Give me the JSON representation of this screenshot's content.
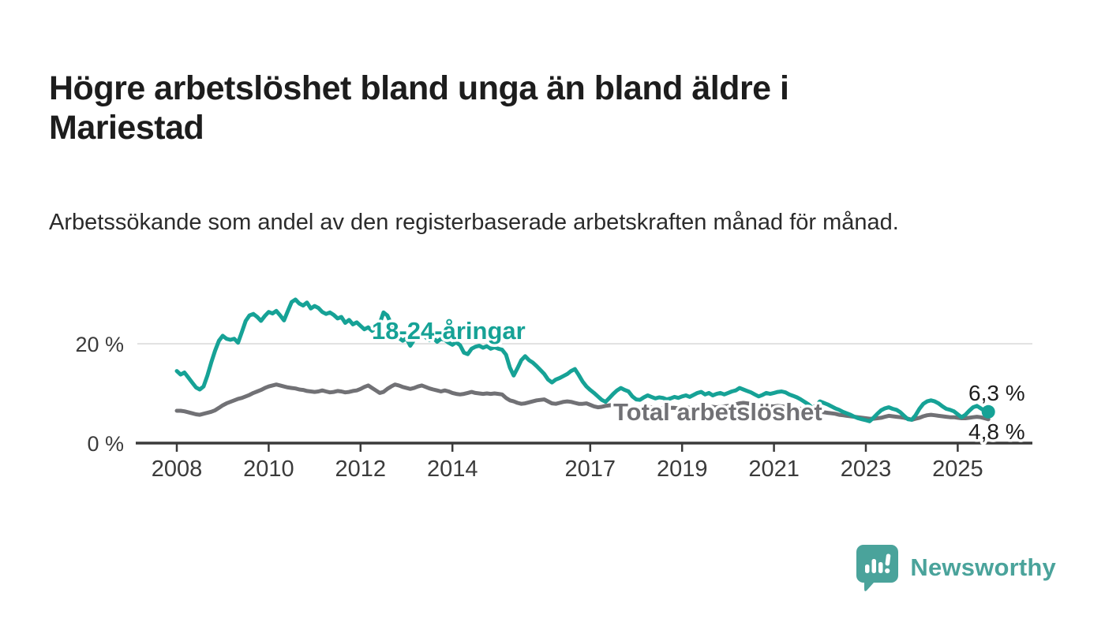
{
  "header": {
    "title": "Högre arbetslöshet bland unga än bland äldre i Mariestad",
    "subtitle": "Arbetssökande som andel av den registerbaserade arbetskraften månad för månad."
  },
  "chart_data": {
    "type": "line",
    "unit": "percent",
    "frequency": "monthly",
    "start": "2008-01",
    "end": "2025-09",
    "grid": "horizontal gridline at 20% only",
    "legend_position": "inline labels on lines",
    "xlim": [
      2007.6,
      2026.3
    ],
    "ylim": [
      0,
      31.5
    ],
    "x_ticks": [
      "2008",
      "2010",
      "2012",
      "2014",
      "2017",
      "2019",
      "2021",
      "2023",
      "2025"
    ],
    "y_ticks": [
      {
        "value": 20,
        "label": "20 %"
      },
      {
        "value": 0,
        "label": "0 %"
      }
    ],
    "series": [
      {
        "name": "18-24-åringar",
        "color": "#16a296",
        "end_value": 6.3,
        "end_label": "6,3 %",
        "values": [
          14.5,
          13.8,
          14.2,
          13.2,
          12.2,
          11.2,
          10.8,
          11.4,
          13.6,
          16.2,
          18.6,
          20.6,
          21.6,
          21.0,
          20.8,
          21.0,
          20.2,
          22.4,
          24.6,
          25.7,
          26.0,
          25.4,
          24.6,
          25.6,
          26.4,
          26.1,
          26.6,
          25.7,
          24.7,
          26.6,
          28.4,
          28.9,
          28.1,
          27.7,
          28.3,
          27.1,
          27.6,
          27.2,
          26.4,
          26.0,
          26.3,
          25.8,
          25.1,
          25.4,
          24.2,
          24.8,
          23.9,
          24.3,
          23.6,
          22.9,
          23.3,
          22.6,
          23.1,
          24.1,
          26.3,
          25.7,
          24.0,
          22.4,
          21.2,
          20.6,
          21.1,
          19.6,
          20.8,
          21.5,
          22.0,
          21.3,
          20.7,
          21.2,
          20.4,
          21.0,
          20.8,
          20.2,
          19.8,
          20.3,
          19.7,
          18.2,
          17.9,
          19.0,
          19.4,
          19.6,
          19.2,
          19.5,
          19.0,
          19.3,
          19.0,
          18.8,
          17.8,
          15.2,
          13.6,
          15.1,
          16.7,
          17.5,
          16.7,
          16.2,
          15.5,
          14.7,
          13.9,
          12.8,
          12.2,
          12.8,
          13.1,
          13.5,
          13.9,
          14.5,
          14.9,
          13.7,
          12.4,
          11.4,
          10.7,
          10.1,
          9.4,
          8.7,
          8.3,
          9.1,
          9.9,
          10.6,
          11.1,
          10.7,
          10.4,
          9.4,
          8.8,
          8.7,
          9.2,
          9.6,
          9.3,
          9.0,
          9.2,
          9.1,
          8.8,
          9.0,
          9.3,
          9.1,
          9.4,
          9.6,
          9.3,
          9.7,
          10.1,
          10.3,
          9.8,
          10.1,
          9.6,
          9.9,
          10.1,
          9.8,
          10.1,
          10.4,
          10.6,
          11.1,
          10.8,
          10.5,
          10.2,
          9.8,
          9.4,
          9.7,
          10.1,
          9.9,
          10.1,
          10.3,
          10.4,
          10.2,
          9.8,
          9.5,
          9.2,
          8.8,
          8.3,
          7.8,
          7.1,
          7.6,
          8.4,
          8.1,
          7.8,
          7.4,
          7.0,
          6.7,
          6.3,
          6.0,
          5.7,
          5.3,
          5.0,
          4.8,
          4.6,
          4.4,
          5.1,
          5.9,
          6.6,
          7.0,
          7.2,
          6.9,
          6.7,
          6.2,
          5.5,
          4.8,
          4.7,
          5.6,
          6.9,
          7.9,
          8.4,
          8.6,
          8.4,
          8.0,
          7.4,
          6.9,
          6.7,
          6.4,
          5.8,
          5.2,
          5.7,
          6.5,
          7.2,
          7.5,
          7.0,
          6.5,
          6.3
        ]
      },
      {
        "name": "Total arbetslöshet",
        "color": "#717175",
        "end_value": 4.8,
        "end_label": "4,8 %",
        "values": [
          6.5,
          6.5,
          6.4,
          6.2,
          6.0,
          5.8,
          5.7,
          5.9,
          6.1,
          6.3,
          6.6,
          7.1,
          7.6,
          8.0,
          8.3,
          8.6,
          8.9,
          9.1,
          9.4,
          9.7,
          10.1,
          10.4,
          10.7,
          11.1,
          11.4,
          11.6,
          11.8,
          11.6,
          11.4,
          11.2,
          11.1,
          11.0,
          10.8,
          10.7,
          10.5,
          10.4,
          10.3,
          10.4,
          10.6,
          10.4,
          10.2,
          10.3,
          10.5,
          10.4,
          10.2,
          10.3,
          10.5,
          10.6,
          10.9,
          11.3,
          11.6,
          11.1,
          10.6,
          10.1,
          10.3,
          10.9,
          11.4,
          11.8,
          11.6,
          11.3,
          11.1,
          10.9,
          11.1,
          11.4,
          11.6,
          11.3,
          11.0,
          10.8,
          10.6,
          10.4,
          10.6,
          10.4,
          10.1,
          9.9,
          9.8,
          9.9,
          10.1,
          10.3,
          10.1,
          10.0,
          9.9,
          10.0,
          9.9,
          10.0,
          9.9,
          9.8,
          9.1,
          8.6,
          8.4,
          8.1,
          7.9,
          8.0,
          8.2,
          8.4,
          8.6,
          8.7,
          8.8,
          8.4,
          8.0,
          7.9,
          8.1,
          8.3,
          8.4,
          8.3,
          8.1,
          7.9,
          7.9,
          8.0,
          7.7,
          7.4,
          7.2,
          7.3,
          7.5,
          7.6,
          7.7,
          7.6,
          7.5,
          7.4,
          7.3,
          7.2,
          7.1,
          7.1,
          7.2,
          7.3,
          7.2,
          7.1,
          7.0,
          7.1,
          7.2,
          7.1,
          7.1,
          7.0,
          7.1,
          7.2,
          7.1,
          7.2,
          7.3,
          7.2,
          7.1,
          7.2,
          7.3,
          7.2,
          7.3,
          7.4,
          7.5,
          7.6,
          7.8,
          8.0,
          8.1,
          8.0,
          7.9,
          7.8,
          7.7,
          7.6,
          7.5,
          7.4,
          7.4,
          7.5,
          7.4,
          7.3,
          7.2,
          7.1,
          7.0,
          6.9,
          6.7,
          6.5,
          6.4,
          6.4,
          6.3,
          6.2,
          6.1,
          6.0,
          5.9,
          5.7,
          5.6,
          5.5,
          5.4,
          5.3,
          5.2,
          5.1,
          5.0,
          4.9,
          4.9,
          5.0,
          5.1,
          5.3,
          5.5,
          5.4,
          5.3,
          5.2,
          5.1,
          4.9,
          4.7,
          4.9,
          5.1,
          5.4,
          5.6,
          5.7,
          5.6,
          5.5,
          5.4,
          5.3,
          5.2,
          5.2,
          5.1,
          5.0,
          5.0,
          5.1,
          5.2,
          5.3,
          5.2,
          5.0,
          4.8
        ]
      }
    ]
  },
  "footer": {
    "brand": "Newsworthy",
    "brand_color": "#4aa39b"
  }
}
